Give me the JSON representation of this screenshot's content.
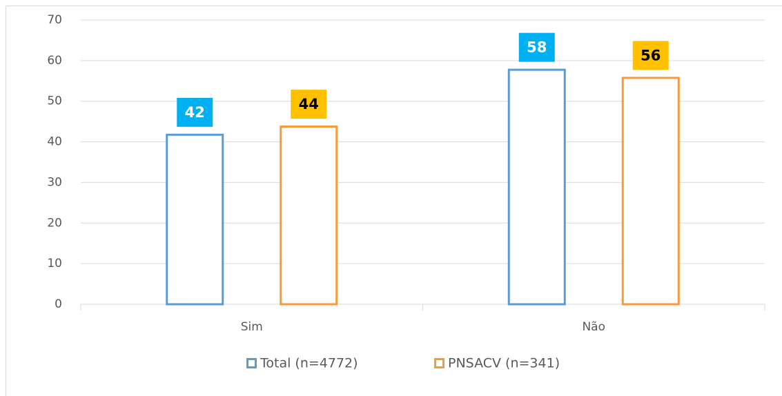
{
  "chart_data": {
    "type": "bar",
    "categories": [
      "Sim",
      "Não"
    ],
    "series": [
      {
        "name": "Total (n=4772)",
        "color": "#5b9bd5",
        "label_color": "#00b0f0",
        "label_text_color": "#ffffff",
        "values": [
          42,
          58
        ]
      },
      {
        "name": "PNSACV (n=341)",
        "color": "#f8993b",
        "label_color": "#ffc000",
        "label_text_color": "#000000",
        "values": [
          44,
          56
        ]
      }
    ],
    "ylim": [
      0,
      70
    ],
    "yticks": [
      0,
      10,
      20,
      30,
      40,
      50,
      60,
      70
    ],
    "grid": true,
    "legend": "bottom"
  }
}
